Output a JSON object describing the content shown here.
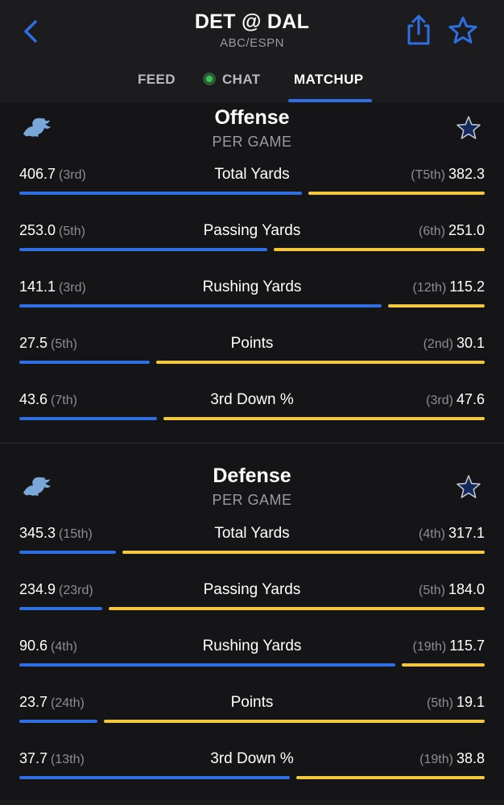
{
  "header": {
    "title": "DET @ DAL",
    "network": "ABC/ESPN",
    "icons": [
      "chevron-left-icon",
      "share-icon",
      "star-icon"
    ],
    "accent_color": "#2f6fe3"
  },
  "tabs": [
    {
      "label": "FEED",
      "active": false
    },
    {
      "label": "CHAT",
      "active": false,
      "live_dot": true
    },
    {
      "label": "MATCHUP",
      "active": true
    }
  ],
  "colors": {
    "left_team_bar": "#2f6fe3",
    "right_team_bar": "#f3c83c",
    "live_dot": "#39c459"
  },
  "sections": [
    {
      "title": "Offense",
      "subtitle": "PER GAME",
      "left_team_icon": "lions-logo-icon",
      "right_team_icon": "cowboys-star-icon",
      "rows": [
        {
          "label": "Total Yards",
          "left_value": "406.7",
          "left_rank": "(3rd)",
          "right_rank": "(T5th)",
          "right_value": "382.3",
          "left_share": 0.615
        },
        {
          "label": "Passing Yards",
          "left_value": "253.0",
          "left_rank": "(5th)",
          "right_rank": "(6th)",
          "right_value": "251.0",
          "left_share": 0.54
        },
        {
          "label": "Rushing Yards",
          "left_value": "141.1",
          "left_rank": "(3rd)",
          "right_rank": "(12th)",
          "right_value": "115.2",
          "left_share": 0.79
        },
        {
          "label": "Points",
          "left_value": "27.5",
          "left_rank": "(5th)",
          "right_rank": "(2nd)",
          "right_value": "30.1",
          "left_share": 0.285
        },
        {
          "label": "3rd Down %",
          "left_value": "43.6",
          "left_rank": "(7th)",
          "right_rank": "(3rd)",
          "right_value": "47.6",
          "left_share": 0.3
        }
      ]
    },
    {
      "title": "Defense",
      "subtitle": "PER GAME",
      "left_team_icon": "lions-logo-icon",
      "right_team_icon": "cowboys-star-icon",
      "rows": [
        {
          "label": "Total Yards",
          "left_value": "345.3",
          "left_rank": "(15th)",
          "right_rank": "(4th)",
          "right_value": "317.1",
          "left_share": 0.21
        },
        {
          "label": "Passing Yards",
          "left_value": "234.9",
          "left_rank": "(23rd)",
          "right_rank": "(5th)",
          "right_value": "184.0",
          "left_share": 0.18
        },
        {
          "label": "Rushing Yards",
          "left_value": "90.6",
          "left_rank": "(4th)",
          "right_rank": "(19th)",
          "right_value": "115.7",
          "left_share": 0.82
        },
        {
          "label": "Points",
          "left_value": "23.7",
          "left_rank": "(24th)",
          "right_rank": "(5th)",
          "right_value": "19.1",
          "left_share": 0.17
        },
        {
          "label": "3rd Down %",
          "left_value": "37.7",
          "left_rank": "(13th)",
          "right_rank": "(19th)",
          "right_value": "38.8",
          "left_share": 0.59
        }
      ]
    }
  ]
}
